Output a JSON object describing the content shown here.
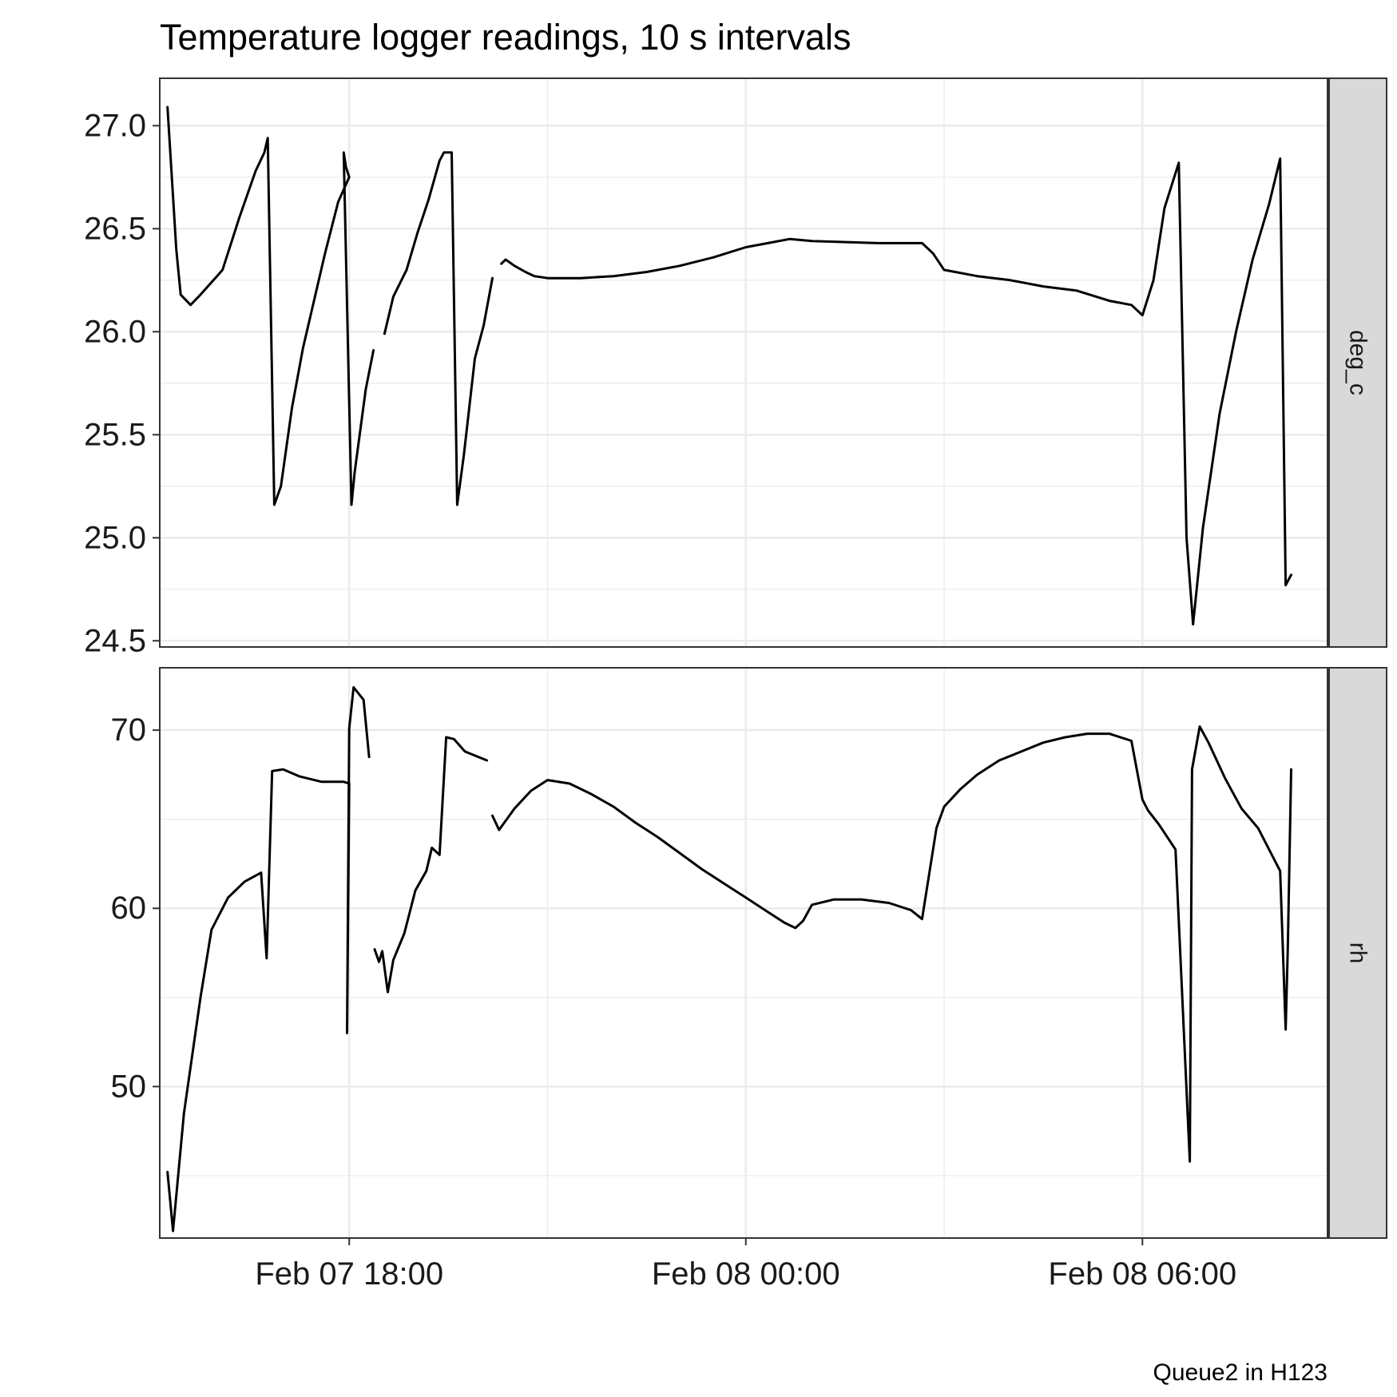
{
  "chart_data": {
    "type": "line",
    "title": "Temperature logger readings, 10 s intervals",
    "caption": "Queue2 in H123",
    "xlabel": "",
    "ylabel": "",
    "x_unit": "datetime",
    "xlim": [
      "2017-02-07 15:08",
      "2017-02-08 08:48"
    ],
    "x_ticks": [
      {
        "value": "2017-02-07 18:00",
        "label": "Feb 07 18:00"
      },
      {
        "value": "2017-02-08 00:00",
        "label": "Feb 08 00:00"
      },
      {
        "value": "2017-02-08 06:00",
        "label": "Feb 08 06:00"
      }
    ],
    "x_minor_ticks": [
      "2017-02-07 15:00",
      "2017-02-07 21:00",
      "2017-02-08 03:00",
      "2017-02-08 09:00"
    ],
    "grid": true,
    "facets": [
      {
        "strip_label": "deg_c",
        "ylim": [
          24.47,
          27.23
        ],
        "y_ticks": [
          {
            "value": 24.5,
            "label": "24.5"
          },
          {
            "value": 25.0,
            "label": "25.0"
          },
          {
            "value": 25.5,
            "label": "25.5"
          },
          {
            "value": 26.0,
            "label": "26.0"
          },
          {
            "value": 26.5,
            "label": "26.5"
          },
          {
            "value": 27.0,
            "label": "27.0"
          }
        ],
        "y_minor_ticks": [
          24.75,
          25.25,
          25.75,
          26.25,
          26.75
        ],
        "segments": [
          [
            [
              "2017-02-07 15:15",
              27.09
            ],
            [
              "2017-02-07 15:23",
              26.4
            ],
            [
              "2017-02-07 15:27",
              26.18
            ],
            [
              "2017-02-07 15:36",
              26.13
            ],
            [
              "2017-02-07 15:45",
              26.18
            ],
            [
              "2017-02-07 16:00",
              26.27
            ],
            [
              "2017-02-07 16:05",
              26.3
            ],
            [
              "2017-02-07 16:20",
              26.55
            ],
            [
              "2017-02-07 16:35",
              26.78
            ],
            [
              "2017-02-07 16:43",
              26.87
            ],
            [
              "2017-02-07 16:46",
              26.94
            ],
            [
              "2017-02-07 16:52",
              25.16
            ],
            [
              "2017-02-07 16:58",
              25.25
            ],
            [
              "2017-02-07 17:08",
              25.63
            ],
            [
              "2017-02-07 17:18",
              25.92
            ],
            [
              "2017-02-07 17:28",
              26.15
            ],
            [
              "2017-02-07 17:38",
              26.38
            ],
            [
              "2017-02-07 17:50",
              26.63
            ],
            [
              "2017-02-07 18:00",
              26.75
            ],
            [
              "2017-02-07 17:57",
              26.8
            ],
            [
              "2017-02-07 17:55",
              26.87
            ],
            [
              "2017-02-07 18:02",
              25.16
            ],
            [
              "2017-02-07 18:05",
              25.32
            ],
            [
              "2017-02-07 18:15",
              25.72
            ],
            [
              "2017-02-07 18:22",
              25.91
            ]
          ],
          [
            [
              "2017-02-07 18:32",
              25.99
            ],
            [
              "2017-02-07 18:40",
              26.17
            ],
            [
              "2017-02-07 18:52",
              26.3
            ],
            [
              "2017-02-07 19:02",
              26.48
            ],
            [
              "2017-02-07 19:12",
              26.64
            ],
            [
              "2017-02-07 19:22",
              26.83
            ],
            [
              "2017-02-07 19:26",
              26.87
            ],
            [
              "2017-02-07 19:33",
              26.87
            ],
            [
              "2017-02-07 19:38",
              25.16
            ],
            [
              "2017-02-07 19:44",
              25.4
            ],
            [
              "2017-02-07 19:54",
              25.87
            ],
            [
              "2017-02-07 20:02",
              26.03
            ],
            [
              "2017-02-07 20:10",
              26.26
            ]
          ],
          [
            [
              "2017-02-07 20:18",
              26.33
            ],
            [
              "2017-02-07 20:22",
              26.35
            ],
            [
              "2017-02-07 20:30",
              26.32
            ],
            [
              "2017-02-07 20:40",
              26.29
            ],
            [
              "2017-02-07 20:48",
              26.27
            ],
            [
              "2017-02-07 21:00",
              26.26
            ],
            [
              "2017-02-07 21:30",
              26.26
            ],
            [
              "2017-02-07 22:00",
              26.27
            ],
            [
              "2017-02-07 22:30",
              26.29
            ],
            [
              "2017-02-07 23:00",
              26.32
            ],
            [
              "2017-02-07 23:30",
              26.36
            ],
            [
              "2017-02-08 00:00",
              26.41
            ],
            [
              "2017-02-08 00:20",
              26.43
            ],
            [
              "2017-02-08 00:40",
              26.45
            ],
            [
              "2017-02-08 01:00",
              26.44
            ],
            [
              "2017-02-08 02:00",
              26.43
            ],
            [
              "2017-02-08 02:40",
              26.43
            ],
            [
              "2017-02-08 02:50",
              26.38
            ],
            [
              "2017-02-08 03:00",
              26.3
            ],
            [
              "2017-02-08 03:30",
              26.27
            ],
            [
              "2017-02-08 04:00",
              26.25
            ],
            [
              "2017-02-08 04:30",
              26.22
            ],
            [
              "2017-02-08 05:00",
              26.2
            ],
            [
              "2017-02-08 05:30",
              26.15
            ],
            [
              "2017-02-08 05:50",
              26.13
            ],
            [
              "2017-02-08 06:00",
              26.08
            ],
            [
              "2017-02-08 06:10",
              26.25
            ],
            [
              "2017-02-08 06:20",
              26.6
            ],
            [
              "2017-02-08 06:33",
              26.82
            ],
            [
              "2017-02-08 06:40",
              25.0
            ],
            [
              "2017-02-08 06:46",
              24.58
            ],
            [
              "2017-02-08 06:55",
              25.05
            ],
            [
              "2017-02-08 07:10",
              25.6
            ],
            [
              "2017-02-08 07:25",
              26.0
            ],
            [
              "2017-02-08 07:40",
              26.35
            ],
            [
              "2017-02-08 07:55",
              26.62
            ],
            [
              "2017-02-08 08:05",
              26.84
            ],
            [
              "2017-02-08 08:10",
              24.77
            ],
            [
              "2017-02-08 08:15",
              24.82
            ]
          ]
        ]
      },
      {
        "strip_label": "rh",
        "ylim": [
          41.5,
          73.5
        ],
        "y_ticks": [
          {
            "value": 50,
            "label": "50"
          },
          {
            "value": 60,
            "label": "60"
          },
          {
            "value": 70,
            "label": "70"
          }
        ],
        "y_minor_ticks": [
          45,
          55,
          65
        ],
        "segments": [
          [
            [
              "2017-02-07 15:15",
              45.2
            ],
            [
              "2017-02-07 15:20",
              41.9
            ],
            [
              "2017-02-07 15:30",
              48.5
            ],
            [
              "2017-02-07 15:45",
              55.0
            ],
            [
              "2017-02-07 15:55",
              58.8
            ],
            [
              "2017-02-07 16:10",
              60.6
            ],
            [
              "2017-02-07 16:25",
              61.5
            ],
            [
              "2017-02-07 16:40",
              62.0
            ],
            [
              "2017-02-07 16:45",
              57.2
            ],
            [
              "2017-02-07 16:50",
              67.7
            ],
            [
              "2017-02-07 17:00",
              67.8
            ],
            [
              "2017-02-07 17:15",
              67.4
            ],
            [
              "2017-02-07 17:35",
              67.1
            ],
            [
              "2017-02-07 17:55",
              67.1
            ],
            [
              "2017-02-07 18:00",
              67.0
            ],
            [
              "2017-02-07 17:58",
              53.0
            ],
            [
              "2017-02-07 18:00",
              70.1
            ],
            [
              "2017-02-07 18:04",
              72.4
            ],
            [
              "2017-02-07 18:13",
              71.7
            ],
            [
              "2017-02-07 18:18",
              68.5
            ]
          ],
          [
            [
              "2017-02-07 18:23",
              57.7
            ],
            [
              "2017-02-07 18:27",
              57.0
            ],
            [
              "2017-02-07 18:30",
              57.6
            ],
            [
              "2017-02-07 18:35",
              55.3
            ],
            [
              "2017-02-07 18:40",
              57.1
            ],
            [
              "2017-02-07 18:50",
              58.6
            ],
            [
              "2017-02-07 19:00",
              61.0
            ],
            [
              "2017-02-07 19:10",
              62.1
            ],
            [
              "2017-02-07 19:15",
              63.4
            ],
            [
              "2017-02-07 19:22",
              63.0
            ],
            [
              "2017-02-07 19:28",
              69.6
            ],
            [
              "2017-02-07 19:35",
              69.5
            ],
            [
              "2017-02-07 19:45",
              68.8
            ],
            [
              "2017-02-07 20:05",
              68.3
            ]
          ],
          [
            [
              "2017-02-07 20:10",
              65.2
            ],
            [
              "2017-02-07 20:16",
              64.4
            ],
            [
              "2017-02-07 20:30",
              65.6
            ],
            [
              "2017-02-07 20:45",
              66.6
            ],
            [
              "2017-02-07 21:00",
              67.2
            ],
            [
              "2017-02-07 21:20",
              67.0
            ],
            [
              "2017-02-07 21:40",
              66.4
            ],
            [
              "2017-02-07 22:00",
              65.7
            ],
            [
              "2017-02-07 22:20",
              64.8
            ],
            [
              "2017-02-07 22:40",
              64.0
            ],
            [
              "2017-02-07 23:00",
              63.1
            ],
            [
              "2017-02-07 23:20",
              62.2
            ],
            [
              "2017-02-07 23:40",
              61.4
            ],
            [
              "2017-02-08 00:00",
              60.6
            ],
            [
              "2017-02-08 00:20",
              59.8
            ],
            [
              "2017-02-08 00:35",
              59.2
            ],
            [
              "2017-02-08 00:45",
              58.9
            ],
            [
              "2017-02-08 00:52",
              59.3
            ],
            [
              "2017-02-08 01:00",
              60.2
            ],
            [
              "2017-02-08 01:20",
              60.5
            ],
            [
              "2017-02-08 01:45",
              60.5
            ],
            [
              "2017-02-08 02:10",
              60.3
            ],
            [
              "2017-02-08 02:30",
              59.9
            ],
            [
              "2017-02-08 02:40",
              59.4
            ],
            [
              "2017-02-08 02:53",
              64.5
            ],
            [
              "2017-02-08 03:00",
              65.7
            ],
            [
              "2017-02-08 03:15",
              66.7
            ],
            [
              "2017-02-08 03:30",
              67.5
            ],
            [
              "2017-02-08 03:50",
              68.3
            ],
            [
              "2017-02-08 04:10",
              68.8
            ],
            [
              "2017-02-08 04:30",
              69.3
            ],
            [
              "2017-02-08 04:50",
              69.6
            ],
            [
              "2017-02-08 05:10",
              69.8
            ],
            [
              "2017-02-08 05:30",
              69.8
            ],
            [
              "2017-02-08 05:50",
              69.4
            ],
            [
              "2017-02-08 06:00",
              66.1
            ],
            [
              "2017-02-08 06:05",
              65.5
            ],
            [
              "2017-02-08 06:15",
              64.7
            ],
            [
              "2017-02-08 06:30",
              63.3
            ],
            [
              "2017-02-08 06:43",
              45.8
            ],
            [
              "2017-02-08 06:45",
              67.8
            ],
            [
              "2017-02-08 06:52",
              70.2
            ],
            [
              "2017-02-08 07:00",
              69.3
            ],
            [
              "2017-02-08 07:15",
              67.3
            ],
            [
              "2017-02-08 07:30",
              65.6
            ],
            [
              "2017-02-08 07:45",
              64.5
            ],
            [
              "2017-02-08 08:05",
              62.1
            ],
            [
              "2017-02-08 08:10",
              53.2
            ],
            [
              "2017-02-08 08:12",
              57.8
            ],
            [
              "2017-02-08 08:15",
              67.8
            ]
          ]
        ]
      }
    ]
  }
}
